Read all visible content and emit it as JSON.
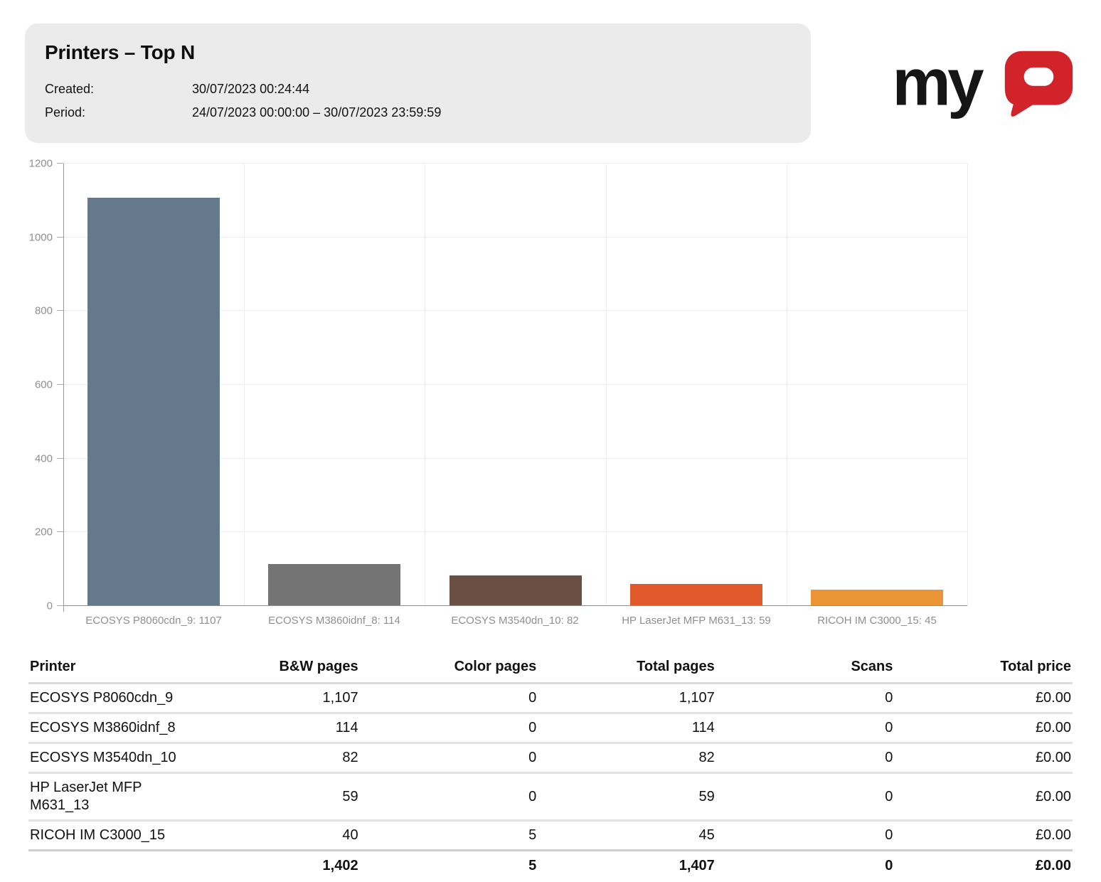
{
  "report": {
    "title": "Printers – Top N",
    "created_label": "Created:",
    "created_value": "30/07/2023 00:24:44",
    "period_label": "Period:",
    "period_value": "24/07/2023 00:00:00 – 30/07/2023 23:59:59"
  },
  "logo": {
    "text": "myQ",
    "my": "my",
    "q_color": "#d2232a",
    "text_color": "#151515"
  },
  "chart_data": {
    "type": "bar",
    "title": "",
    "xlabel": "",
    "ylabel": "",
    "categories": [
      "ECOSYS P8060cdn_9: 1107",
      "ECOSYS M3860idnf_8: 114",
      "ECOSYS M3540dn_10: 82",
      "HP LaserJet MFP M631_13: 59",
      "RICOH IM C3000_15: 45"
    ],
    "values": [
      1107,
      114,
      82,
      59,
      45
    ],
    "bar_colors": [
      "#64798b",
      "#747474",
      "#6a5044",
      "#e05a2c",
      "#ec9537"
    ],
    "ylim": [
      0,
      1200
    ],
    "ytick_step": 200,
    "yticks": [
      "0",
      "200",
      "400",
      "600",
      "800",
      "1000",
      "1200"
    ],
    "grid": true,
    "legend": false
  },
  "table": {
    "columns": [
      "Printer",
      "B&W pages",
      "Color pages",
      "Total pages",
      "Scans",
      "Total price"
    ],
    "rows": [
      [
        "ECOSYS P8060cdn_9",
        "1,107",
        "0",
        "1,107",
        "0",
        "£0.00"
      ],
      [
        "ECOSYS M3860idnf_8",
        "114",
        "0",
        "114",
        "0",
        "£0.00"
      ],
      [
        "ECOSYS M3540dn_10",
        "82",
        "0",
        "82",
        "0",
        "£0.00"
      ],
      [
        "HP LaserJet MFP M631_13",
        "59",
        "0",
        "59",
        "0",
        "£0.00"
      ],
      [
        "RICOH IM C3000_15",
        "40",
        "5",
        "45",
        "0",
        "£0.00"
      ]
    ],
    "totals": [
      "",
      "1,402",
      "5",
      "1,407",
      "0",
      "£0.00"
    ]
  }
}
